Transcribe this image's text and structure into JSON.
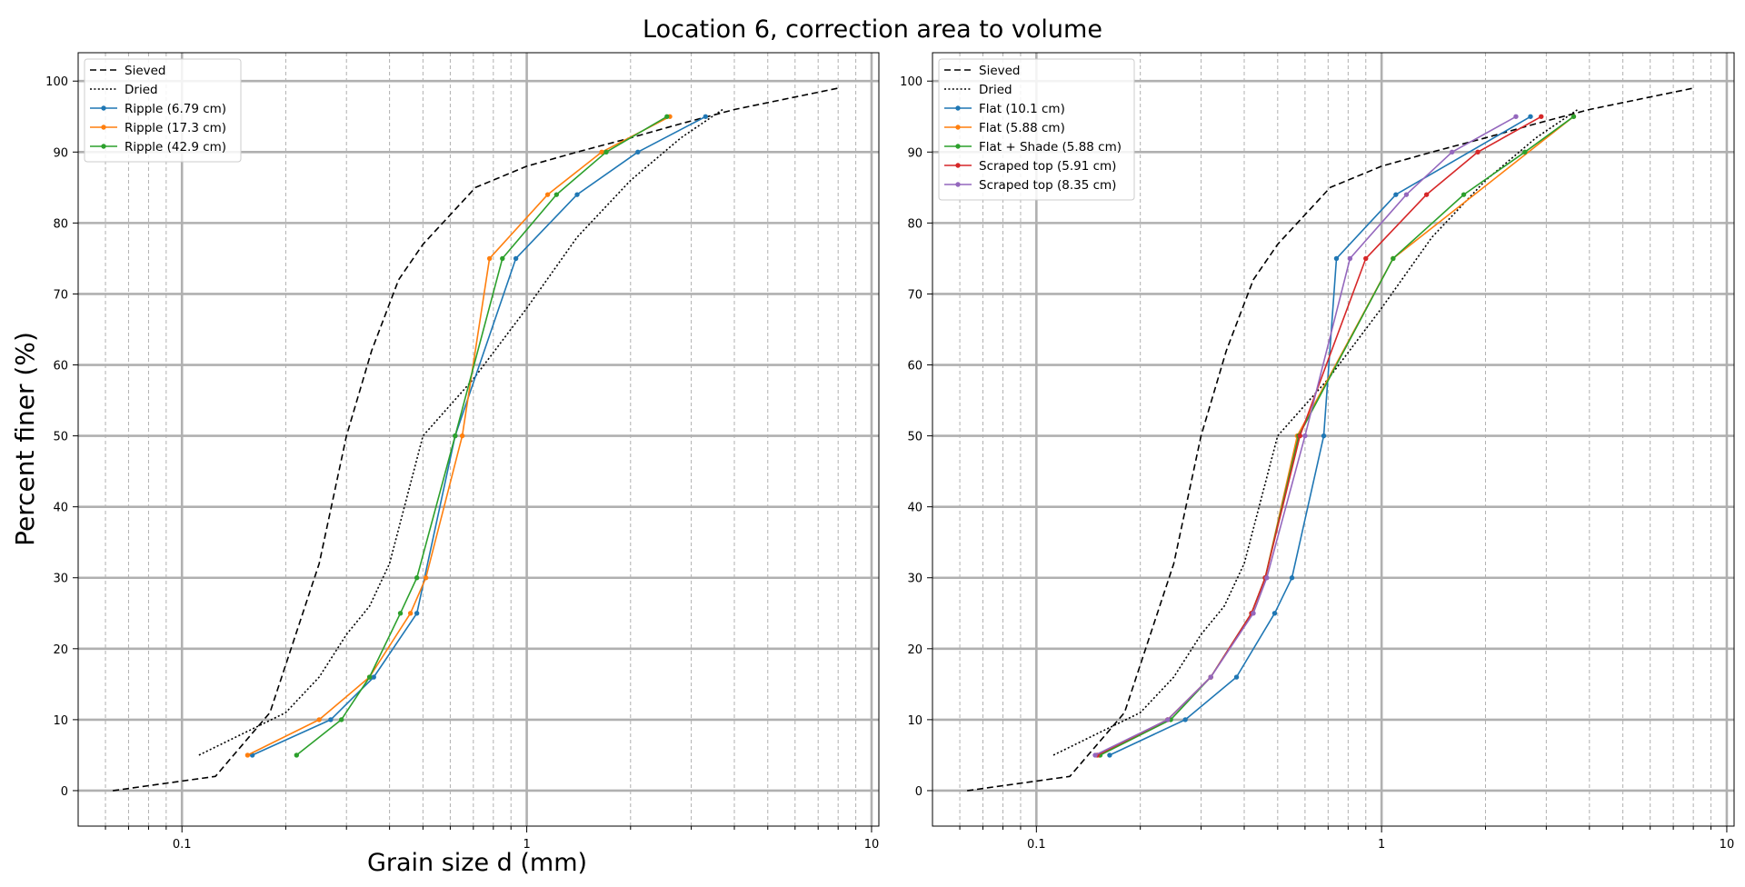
{
  "figure": {
    "title": "Location 6, correction area to volume",
    "ylabel": "Percent finer (%)",
    "xlabel": "Grain size d (mm)"
  },
  "chart_data": [
    {
      "type": "line",
      "xscale": "log",
      "xlim": [
        0.05,
        10.5
      ],
      "ylim": [
        -5,
        104
      ],
      "xticks": [
        {
          "v": 0.1,
          "label": "0.1"
        },
        {
          "v": 1,
          "label": "1"
        },
        {
          "v": 10,
          "label": "10"
        }
      ],
      "yticks": [
        {
          "v": 0,
          "label": "0"
        },
        {
          "v": 10,
          "label": "10"
        },
        {
          "v": 20,
          "label": "20"
        },
        {
          "v": 30,
          "label": "30"
        },
        {
          "v": 40,
          "label": "40"
        },
        {
          "v": 50,
          "label": "50"
        },
        {
          "v": 60,
          "label": "60"
        },
        {
          "v": 70,
          "label": "70"
        },
        {
          "v": 80,
          "label": "80"
        },
        {
          "v": 90,
          "label": "90"
        },
        {
          "v": 100,
          "label": "100"
        }
      ],
      "grid": true,
      "legend_position": "top-left",
      "series": [
        {
          "name": "Sieved",
          "color": "#000000",
          "style": "dashed",
          "marker": false,
          "x": [
            0.063,
            0.125,
            0.18,
            0.25,
            0.3,
            0.355,
            0.425,
            0.5,
            0.71,
            1.0,
            1.4,
            2.0,
            2.8,
            4.0,
            8.0
          ],
          "y": [
            0,
            2,
            11,
            32,
            50,
            62,
            72,
            77,
            85,
            88,
            90,
            92,
            94,
            96,
            99
          ]
        },
        {
          "name": "Dried",
          "color": "#000000",
          "style": "dotted",
          "marker": false,
          "x": [
            0.112,
            0.2,
            0.25,
            0.3,
            0.35,
            0.4,
            0.5,
            0.7,
            1.0,
            1.4,
            2.0,
            2.8,
            3.7
          ],
          "y": [
            5,
            11,
            16,
            22,
            26,
            32,
            50,
            58,
            68,
            78,
            86,
            92,
            96
          ]
        },
        {
          "name": "Ripple (6.79 cm)",
          "color": "#1f77b4",
          "style": "solid",
          "marker": true,
          "x": [
            0.16,
            0.27,
            0.36,
            0.48,
            0.62,
            0.93,
            1.4,
            2.1,
            3.3
          ],
          "y": [
            5,
            10,
            16,
            25,
            50,
            75,
            84,
            90,
            95
          ]
        },
        {
          "name": "Ripple (17.3 cm)",
          "color": "#ff7f0e",
          "style": "solid",
          "marker": true,
          "x": [
            0.155,
            0.25,
            0.35,
            0.46,
            0.51,
            0.65,
            0.78,
            1.15,
            1.65,
            2.6
          ],
          "y": [
            5,
            10,
            16,
            25,
            30,
            50,
            75,
            84,
            90,
            95
          ]
        },
        {
          "name": "Ripple (42.9 cm)",
          "color": "#2ca02c",
          "style": "solid",
          "marker": true,
          "x": [
            0.215,
            0.29,
            0.35,
            0.43,
            0.48,
            0.62,
            0.85,
            1.22,
            1.7,
            2.55
          ],
          "y": [
            5,
            10,
            16,
            25,
            30,
            50,
            75,
            84,
            90,
            95
          ]
        }
      ]
    },
    {
      "type": "line",
      "xscale": "log",
      "xlim": [
        0.05,
        10.5
      ],
      "ylim": [
        -5,
        104
      ],
      "xticks": [
        {
          "v": 0.1,
          "label": "0.1"
        },
        {
          "v": 1,
          "label": "1"
        },
        {
          "v": 10,
          "label": "10"
        }
      ],
      "yticks": [
        {
          "v": 0,
          "label": "0"
        },
        {
          "v": 10,
          "label": "10"
        },
        {
          "v": 20,
          "label": "20"
        },
        {
          "v": 30,
          "label": "30"
        },
        {
          "v": 40,
          "label": "40"
        },
        {
          "v": 50,
          "label": "50"
        },
        {
          "v": 60,
          "label": "60"
        },
        {
          "v": 70,
          "label": "70"
        },
        {
          "v": 80,
          "label": "80"
        },
        {
          "v": 90,
          "label": "90"
        },
        {
          "v": 100,
          "label": "100"
        }
      ],
      "grid": true,
      "legend_position": "top-left",
      "series": [
        {
          "name": "Sieved",
          "color": "#000000",
          "style": "dashed",
          "marker": false,
          "x": [
            0.063,
            0.125,
            0.18,
            0.25,
            0.3,
            0.355,
            0.425,
            0.5,
            0.71,
            1.0,
            1.4,
            2.0,
            2.8,
            4.0,
            8.0
          ],
          "y": [
            0,
            2,
            11,
            32,
            50,
            62,
            72,
            77,
            85,
            88,
            90,
            92,
            94,
            96,
            99
          ]
        },
        {
          "name": "Dried",
          "color": "#000000",
          "style": "dotted",
          "marker": false,
          "x": [
            0.112,
            0.2,
            0.25,
            0.3,
            0.35,
            0.4,
            0.5,
            0.7,
            1.0,
            1.4,
            2.0,
            2.8,
            3.7
          ],
          "y": [
            5,
            11,
            16,
            22,
            26,
            32,
            50,
            58,
            68,
            78,
            86,
            92,
            96
          ]
        },
        {
          "name": "Flat (10.1 cm)",
          "color": "#1f77b4",
          "style": "solid",
          "marker": true,
          "x": [
            0.163,
            0.27,
            0.38,
            0.49,
            0.55,
            0.68,
            0.74,
            1.1,
            2.7
          ],
          "y": [
            5,
            10,
            16,
            25,
            30,
            50,
            75,
            84,
            95
          ]
        },
        {
          "name": "Flat (5.88 cm)",
          "color": "#ff7f0e",
          "style": "solid",
          "marker": true,
          "x": [
            0.152,
            0.24,
            0.32,
            0.42,
            0.46,
            0.57,
            1.08,
            3.6
          ],
          "y": [
            5,
            10,
            16,
            25,
            30,
            50,
            75,
            95
          ]
        },
        {
          "name": "Flat + Shade (5.88 cm)",
          "color": "#2ca02c",
          "style": "solid",
          "marker": true,
          "x": [
            0.153,
            0.245,
            0.32,
            0.42,
            0.46,
            0.575,
            1.08,
            1.73,
            2.6,
            3.6
          ],
          "y": [
            5,
            10,
            16,
            25,
            30,
            50,
            75,
            84,
            90,
            95
          ]
        },
        {
          "name": "Scraped top (5.91 cm)",
          "color": "#d62728",
          "style": "solid",
          "marker": true,
          "x": [
            0.15,
            0.24,
            0.32,
            0.42,
            0.46,
            0.58,
            0.9,
            1.35,
            1.9,
            2.9
          ],
          "y": [
            5,
            10,
            16,
            25,
            30,
            50,
            75,
            84,
            90,
            95
          ]
        },
        {
          "name": "Scraped top (8.35 cm)",
          "color": "#9467bd",
          "style": "solid",
          "marker": true,
          "x": [
            0.148,
            0.24,
            0.32,
            0.425,
            0.465,
            0.6,
            0.81,
            1.18,
            1.6,
            2.45
          ],
          "y": [
            5,
            10,
            16,
            25,
            30,
            50,
            75,
            84,
            90,
            95
          ]
        }
      ]
    }
  ]
}
